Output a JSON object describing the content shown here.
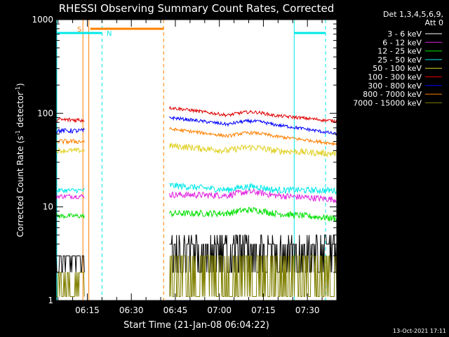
{
  "chart_data": {
    "type": "line",
    "title": "RHESSI Observing Summary Count Rates, Corrected",
    "xlabel": "Start Time (21-Jan-08 06:04:22)",
    "ylabel_main": "Corrected Count Rate (s",
    "ylabel_sup1": "-1",
    "ylabel_mid": " detector",
    "ylabel_sup2": "-1",
    "ylabel_end": ")",
    "ylog": true,
    "ylim": [
      1,
      1000
    ],
    "xlim": [
      "06:04:22",
      "07:40:00"
    ],
    "x_ticks": [
      "06:15",
      "06:30",
      "06:45",
      "07:00",
      "07:15",
      "07:30"
    ],
    "y_ticks": [
      "1",
      "10",
      "100",
      "1000"
    ],
    "legend_header": [
      "Det 1,3,4,5,6,9,",
      "Att 0"
    ],
    "series": [
      {
        "name": "3 - 6 keV",
        "color": "#000000",
        "before": [
          3,
          3
        ],
        "after": {
          "start": 3.5,
          "mid": 3.6,
          "end": 3.4
        }
      },
      {
        "name": "6 - 12 keV",
        "color": "#e020e0",
        "before": [
          13,
          13
        ],
        "after": {
          "start": 13.5,
          "mid": 14,
          "end": 12
        }
      },
      {
        "name": "12 - 25 keV",
        "color": "#00e000",
        "before": [
          8,
          8
        ],
        "after": {
          "start": 8.5,
          "mid": 9,
          "end": 7.5
        }
      },
      {
        "name": "25 - 50 keV",
        "color": "#00e8e8",
        "before": [
          15,
          15
        ],
        "after": {
          "start": 17,
          "mid": 16,
          "end": 15
        }
      },
      {
        "name": "50 - 100 keV",
        "color": "#e0d020",
        "before": [
          40,
          40
        ],
        "after": {
          "start": 45,
          "mid": 42,
          "end": 37
        }
      },
      {
        "name": "100 - 300 keV",
        "color": "#e00000",
        "before": [
          85,
          85
        ],
        "after": {
          "start": 115,
          "mid": 100,
          "end": 82
        }
      },
      {
        "name": "300 - 800 keV",
        "color": "#0000ff",
        "before": [
          65,
          65
        ],
        "after": {
          "start": 90,
          "mid": 80,
          "end": 60
        }
      },
      {
        "name": "800 - 7000 keV",
        "color": "#ff8000",
        "before": [
          50,
          50
        ],
        "after": {
          "start": 68,
          "mid": 60,
          "end": 47
        }
      },
      {
        "name": "7000 - 15000 keV",
        "color": "#808000",
        "before": [
          1.5,
          1.5
        ],
        "after": {
          "start": 1.6,
          "mid": 1.8,
          "end": 1.5
        }
      }
    ],
    "annotations": [
      {
        "label": "S",
        "color": "#ff8000"
      },
      {
        "label": "N",
        "color": "#00e8e8"
      }
    ]
  },
  "footer": {
    "timestamp": "13-Oct-2021 17:11"
  }
}
